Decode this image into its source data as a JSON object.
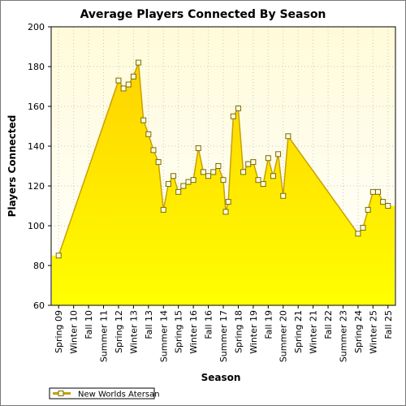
{
  "chart_data": {
    "type": "area",
    "title": "Average Players Connected By Season",
    "xlabel": "Season",
    "ylabel": "Players Connected",
    "ylim": [
      60,
      200
    ],
    "yticks": [
      60,
      80,
      100,
      120,
      140,
      160,
      180,
      200
    ],
    "grid": true,
    "legend": "bottom-left",
    "colors": {
      "fill_top": "#ffd200",
      "fill_bottom": "#ffff00",
      "line": "#c8a000",
      "plot_bg_top": "#fffbd9",
      "plot_bg_bottom": "#ffffff"
    },
    "x_labels": [
      "Spring 09",
      "Winter 10",
      "Fall 10",
      "Summer 11",
      "Spring 12",
      "Winter 13",
      "Fall 13",
      "Summer 14",
      "Spring 15",
      "Winter 16",
      "Fall 16",
      "Summer 17",
      "Spring 18",
      "Winter 19",
      "Fall 19",
      "Summer 20",
      "Spring 21",
      "Winter 21",
      "Fall 22",
      "Summer 23",
      "Spring 24",
      "Winter 25",
      "Fall 25"
    ],
    "series": [
      {
        "name": "New Worlds Atersan",
        "points": [
          {
            "season": "Spring 09",
            "value": 85
          },
          {
            "season": "Spring 12",
            "value": 173
          },
          {
            "season": "Summer 12",
            "value": 169
          },
          {
            "season": "Fall 12",
            "value": 171
          },
          {
            "season": "Winter 13",
            "value": 175
          },
          {
            "season": "Spring 13",
            "value": 182
          },
          {
            "season": "Summer 13",
            "value": 153
          },
          {
            "season": "Fall 13",
            "value": 146
          },
          {
            "season": "Winter 14",
            "value": 138
          },
          {
            "season": "Spring 14",
            "value": 132
          },
          {
            "season": "Summer 14",
            "value": 108
          },
          {
            "season": "Fall 14",
            "value": 121
          },
          {
            "season": "Winter 15",
            "value": 125
          },
          {
            "season": "Spring 15",
            "value": 117
          },
          {
            "season": "Summer 15",
            "value": 120
          },
          {
            "season": "Fall 15",
            "value": 122
          },
          {
            "season": "Winter 16",
            "value": 123
          },
          {
            "season": "Spring 16",
            "value": 139
          },
          {
            "season": "Summer 16",
            "value": 127
          },
          {
            "season": "Fall 16",
            "value": 125
          },
          {
            "season": "Winter 17",
            "value": 127
          },
          {
            "season": "Spring 17",
            "value": 130
          },
          {
            "season": "Summer 17a",
            "value": 123
          },
          {
            "season": "Summer 17",
            "value": 107
          },
          {
            "season": "Fall 17",
            "value": 112
          },
          {
            "season": "Winter 18",
            "value": 155
          },
          {
            "season": "Spring 18",
            "value": 159
          },
          {
            "season": "Summer 18",
            "value": 127
          },
          {
            "season": "Fall 18",
            "value": 131
          },
          {
            "season": "Winter 19",
            "value": 132
          },
          {
            "season": "Spring 19",
            "value": 123
          },
          {
            "season": "Summer 19",
            "value": 121
          },
          {
            "season": "Fall 19",
            "value": 134
          },
          {
            "season": "Winter 20",
            "value": 125
          },
          {
            "season": "Spring 20",
            "value": 136
          },
          {
            "season": "Summer 20",
            "value": 115
          },
          {
            "season": "Fall 20",
            "value": 145
          },
          {
            "season": "Spring 24",
            "value": 96
          },
          {
            "season": "Summer 24",
            "value": 99
          },
          {
            "season": "Fall 24",
            "value": 108
          },
          {
            "season": "Winter 25",
            "value": 117
          },
          {
            "season": "Spring 25",
            "value": 117
          },
          {
            "season": "Summer 25",
            "value": 112
          },
          {
            "season": "Fall 25",
            "value": 110
          }
        ]
      }
    ]
  }
}
